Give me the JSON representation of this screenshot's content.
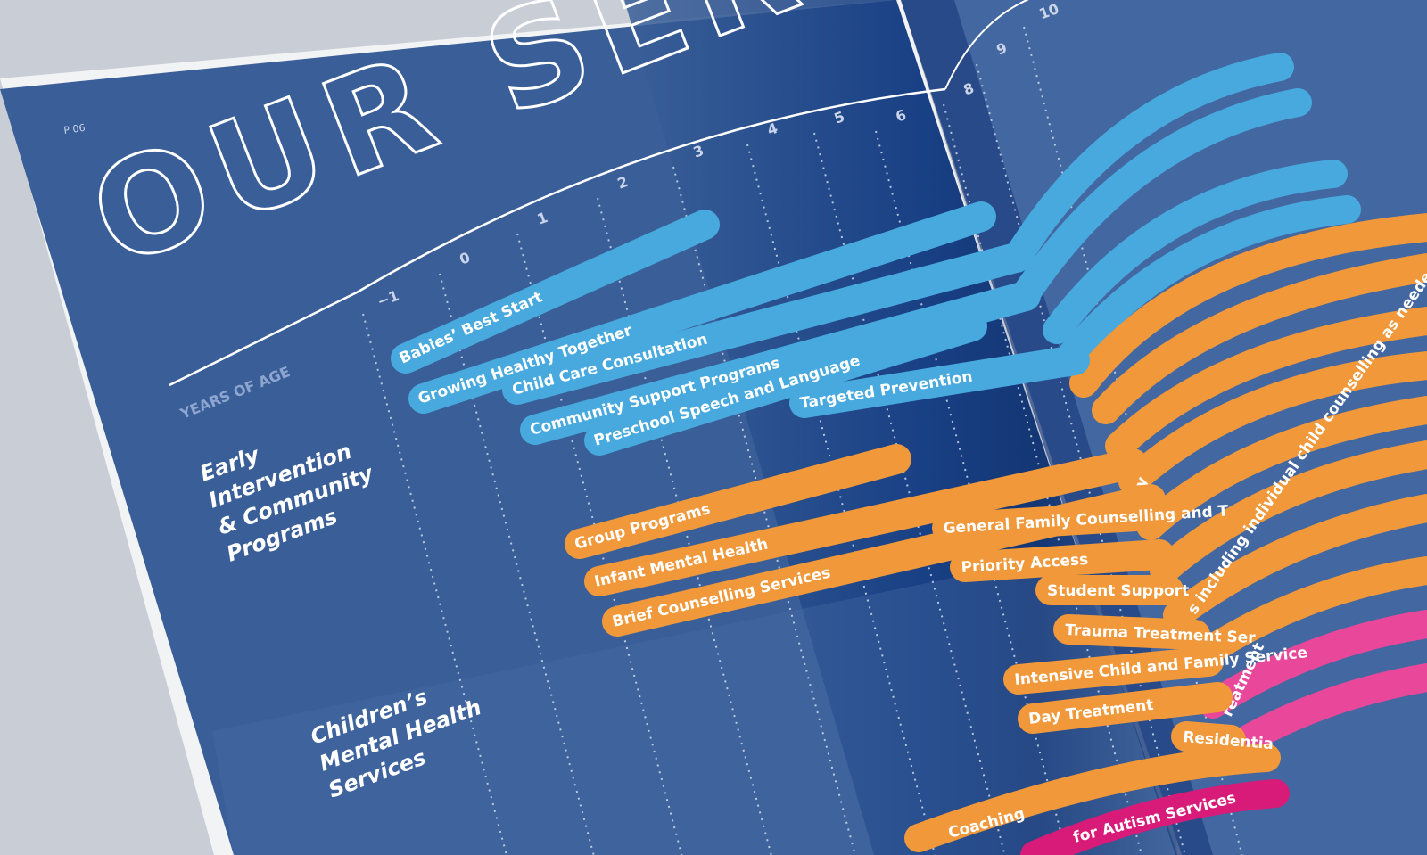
{
  "page_number": "P 06",
  "title": "OUR SERV",
  "axis_label": "YEARS OF AGE",
  "ages": [
    "−1",
    "0",
    "1",
    "2",
    "3",
    "4",
    "5",
    "6",
    "8",
    "9",
    "10"
  ],
  "sections": [
    {
      "title_lines": [
        "Early",
        "Intervention",
        "& Community",
        "Programs"
      ],
      "services": [
        "Babies’ Best Start",
        "Growing Healthy Together",
        "Child Care Consultation",
        "Community Support Programs",
        "Preschool Speech and Language",
        "Targeted Prevention"
      ]
    },
    {
      "title_lines": [
        "Children’s",
        "Mental Health",
        "Services"
      ],
      "services": [
        "Group Programs",
        "Infant Mental Health",
        "Brief Counselling Services",
        "General Family Counselling and T",
        "Priority Access",
        "Student Support",
        "Trauma Treatment Ser",
        "Intensive Child and Family Service",
        "Day Treatment",
        "Residentia"
      ]
    }
  ],
  "right_page_fragments": [
    "apy",
    "s including individual child counselling as needed",
    "reatment",
    "Coaching",
    "for Autism Services"
  ]
}
